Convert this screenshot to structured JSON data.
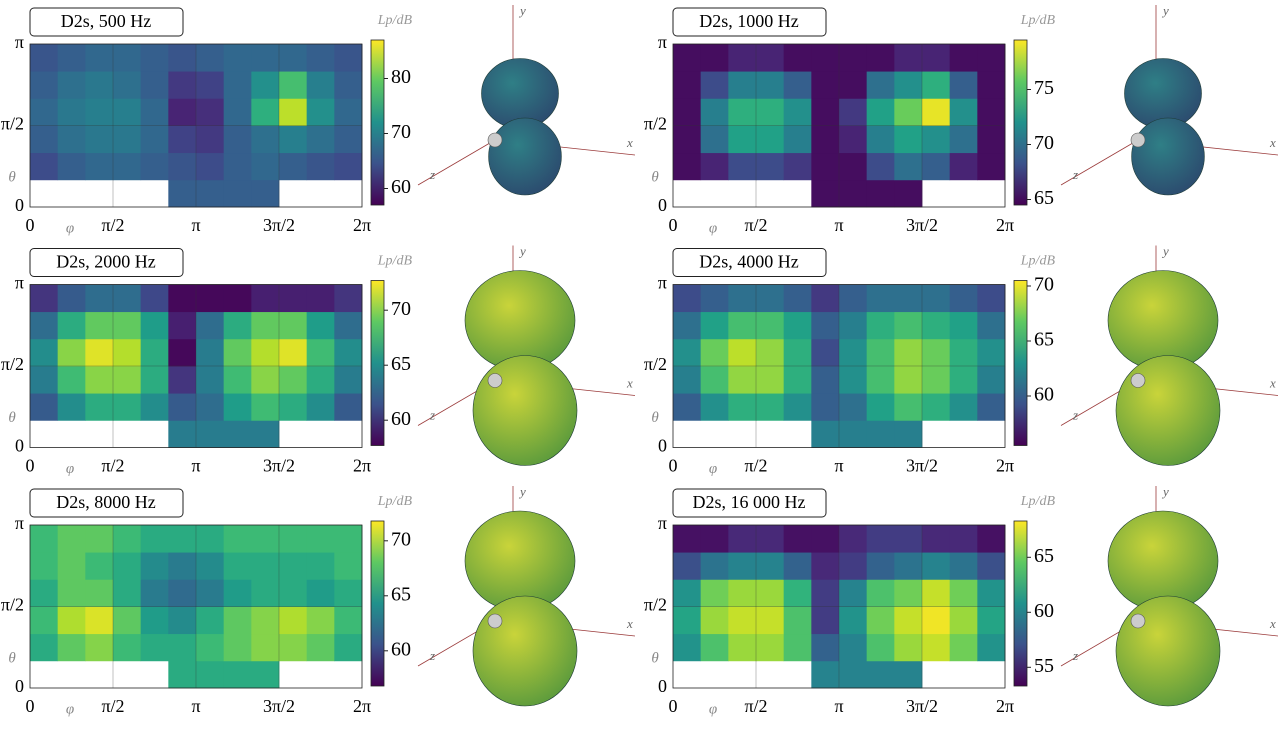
{
  "chart_data": [
    {
      "type": "heatmap",
      "title": "D2s, 500 Hz",
      "colorbar_label": "Lp/dB",
      "x_label": "φ",
      "y_label": "θ",
      "colormap": "viridis",
      "grid": true,
      "xlim": [
        0,
        6.28319
      ],
      "ylim": [
        0,
        3.14159
      ],
      "xticks": [
        0,
        {
          "value": 1.5708,
          "label": "π/2"
        },
        {
          "value": 3.14159,
          "label": "π"
        },
        {
          "value": 4.71239,
          "label": "3π/2"
        },
        {
          "value": 6.28319,
          "label": "2π"
        }
      ],
      "yticks": [
        0,
        {
          "value": 1.5708,
          "label": "π/2"
        },
        {
          "value": 3.14159,
          "label": "π"
        }
      ],
      "zlim": [
        57,
        87
      ],
      "zticks": [
        60,
        70,
        80
      ],
      "balloon_axis_labels": [
        "x",
        "y",
        "z"
      ],
      "values": [
        [
          null,
          null,
          null,
          null,
          null,
          66,
          66,
          66,
          66,
          null,
          null,
          null
        ],
        [
          64,
          66,
          67,
          67,
          66,
          65,
          64,
          66,
          67,
          66,
          65,
          64
        ],
        [
          66,
          68,
          69,
          69,
          67,
          63,
          62,
          66,
          68,
          70,
          68,
          66
        ],
        [
          67,
          69,
          70,
          70,
          67,
          60,
          61,
          67,
          76,
          84,
          72,
          67
        ],
        [
          66,
          68,
          69,
          68,
          66,
          62,
          63,
          67,
          72,
          78,
          70,
          66
        ],
        [
          65,
          66,
          67,
          67,
          66,
          65,
          66,
          67,
          67,
          67,
          66,
          65
        ]
      ]
    },
    {
      "type": "heatmap",
      "title": "D2s, 1000 Hz",
      "colorbar_label": "Lp/dB",
      "x_label": "φ",
      "y_label": "θ",
      "colormap": "viridis",
      "grid": true,
      "xlim": [
        0,
        6.28319
      ],
      "ylim": [
        0,
        3.14159
      ],
      "xticks": [
        0,
        {
          "value": 1.5708,
          "label": "π/2"
        },
        {
          "value": 3.14159,
          "label": "π"
        },
        {
          "value": 4.71239,
          "label": "3π/2"
        },
        {
          "value": 6.28319,
          "label": "2π"
        }
      ],
      "yticks": [
        0,
        {
          "value": 1.5708,
          "label": "π/2"
        },
        {
          "value": 3.14159,
          "label": "π"
        }
      ],
      "zlim": [
        64.5,
        79.5
      ],
      "zticks": [
        65,
        70,
        75
      ],
      "balloon_axis_labels": [
        "x",
        "y",
        "z"
      ],
      "values": [
        [
          null,
          null,
          null,
          null,
          null,
          65,
          65,
          65,
          65,
          null,
          null,
          null
        ],
        [
          65,
          66,
          68,
          68,
          67,
          65,
          65,
          68,
          70,
          69,
          66,
          65
        ],
        [
          65,
          70,
          73,
          73,
          71,
          65,
          66,
          71,
          73,
          72,
          70,
          65
        ],
        [
          65,
          71,
          74,
          74,
          72,
          65,
          67,
          73,
          76,
          79,
          72,
          65
        ],
        [
          65,
          68,
          71,
          71,
          69,
          65,
          65,
          70,
          72,
          74,
          69,
          65
        ],
        [
          65,
          65,
          66,
          66,
          65,
          65,
          65,
          65,
          66,
          66,
          65,
          65
        ]
      ]
    },
    {
      "type": "heatmap",
      "title": "D2s, 2000 Hz",
      "colorbar_label": "Lp/dB",
      "x_label": "φ",
      "y_label": "θ",
      "colormap": "viridis",
      "grid": true,
      "xlim": [
        0,
        6.28319
      ],
      "ylim": [
        0,
        3.14159
      ],
      "xticks": [
        0,
        {
          "value": 1.5708,
          "label": "π/2"
        },
        {
          "value": 3.14159,
          "label": "π"
        },
        {
          "value": 4.71239,
          "label": "3π/2"
        },
        {
          "value": 6.28319,
          "label": "2π"
        }
      ],
      "yticks": [
        0,
        {
          "value": 1.5708,
          "label": "π/2"
        },
        {
          "value": 3.14159,
          "label": "π"
        }
      ],
      "zlim": [
        57.7,
        72.7
      ],
      "zticks": [
        60,
        65,
        70
      ],
      "balloon_axis_labels": [
        "x",
        "y",
        "z"
      ],
      "values": [
        [
          null,
          null,
          null,
          null,
          null,
          64,
          64,
          64,
          64,
          null,
          null,
          null
        ],
        [
          62,
          65,
          67,
          67,
          65,
          62,
          63,
          66,
          68,
          67,
          65,
          62
        ],
        [
          64,
          68,
          70,
          70,
          67,
          60,
          64,
          68,
          70,
          69,
          67,
          64
        ],
        [
          65,
          70,
          72,
          71,
          67,
          58,
          64,
          69,
          71,
          72,
          68,
          65
        ],
        [
          63,
          67,
          69,
          69,
          66,
          59,
          63,
          67,
          69,
          69,
          66,
          63
        ],
        [
          60,
          62,
          63,
          63,
          61,
          58,
          58,
          58,
          59,
          59,
          59,
          60
        ]
      ]
    },
    {
      "type": "heatmap",
      "title": "D2s, 4000 Hz",
      "colorbar_label": "Lp/dB",
      "x_label": "φ",
      "y_label": "θ",
      "colormap": "viridis",
      "grid": true,
      "xlim": [
        0,
        6.28319
      ],
      "ylim": [
        0,
        3.14159
      ],
      "xticks": [
        0,
        {
          "value": 1.5708,
          "label": "π/2"
        },
        {
          "value": 3.14159,
          "label": "π"
        },
        {
          "value": 4.71239,
          "label": "3π/2"
        },
        {
          "value": 6.28319,
          "label": "2π"
        }
      ],
      "yticks": [
        0,
        {
          "value": 1.5708,
          "label": "π/2"
        },
        {
          "value": 3.14159,
          "label": "π"
        }
      ],
      "zlim": [
        55.5,
        70.5
      ],
      "zticks": [
        60,
        65,
        70
      ],
      "balloon_axis_labels": [
        "x",
        "y",
        "z"
      ],
      "values": [
        [
          null,
          null,
          null,
          null,
          null,
          62,
          62,
          62,
          62,
          null,
          null,
          null
        ],
        [
          60,
          63,
          65,
          65,
          63,
          60,
          61,
          64,
          66,
          65,
          63,
          60
        ],
        [
          62,
          66,
          68,
          68,
          65,
          60,
          63,
          66,
          68,
          67,
          65,
          62
        ],
        [
          63,
          67,
          69,
          68,
          65,
          59,
          63,
          66,
          68,
          67,
          65,
          63
        ],
        [
          61,
          64,
          66,
          66,
          64,
          60,
          62,
          65,
          66,
          65,
          64,
          61
        ],
        [
          59,
          60,
          61,
          61,
          60,
          58,
          60,
          61,
          61,
          61,
          60,
          59
        ]
      ]
    },
    {
      "type": "heatmap",
      "title": "D2s, 8000 Hz",
      "colorbar_label": "Lp/dB",
      "x_label": "φ",
      "y_label": "θ",
      "colormap": "viridis",
      "grid": true,
      "xlim": [
        0,
        6.28319
      ],
      "ylim": [
        0,
        3.14159
      ],
      "xticks": [
        0,
        {
          "value": 1.5708,
          "label": "π/2"
        },
        {
          "value": 3.14159,
          "label": "π"
        },
        {
          "value": 4.71239,
          "label": "3π/2"
        },
        {
          "value": 6.28319,
          "label": "2π"
        }
      ],
      "yticks": [
        0,
        {
          "value": 1.5708,
          "label": "π/2"
        },
        {
          "value": 3.14159,
          "label": "π"
        }
      ],
      "zlim": [
        56.8,
        71.8
      ],
      "zticks": [
        60,
        65,
        70
      ],
      "balloon_axis_labels": [
        "x",
        "y",
        "z"
      ],
      "values": [
        [
          null,
          null,
          null,
          null,
          null,
          66,
          66,
          66,
          66,
          null,
          null,
          null
        ],
        [
          66,
          68,
          69,
          67,
          66,
          66,
          67,
          68,
          69,
          69,
          68,
          66
        ],
        [
          67,
          70,
          71,
          68,
          65,
          64,
          66,
          68,
          69,
          70,
          69,
          67
        ],
        [
          66,
          68,
          68,
          66,
          63,
          62,
          63,
          65,
          66,
          66,
          65,
          66
        ],
        [
          67,
          68,
          67,
          66,
          64,
          63,
          64,
          66,
          66,
          66,
          66,
          67
        ],
        [
          67,
          68,
          68,
          67,
          66,
          66,
          66,
          67,
          67,
          67,
          67,
          67
        ]
      ]
    },
    {
      "type": "heatmap",
      "title": "D2s, 16 000 Hz",
      "colorbar_label": "Lp/dB",
      "x_label": "φ",
      "y_label": "θ",
      "colormap": "viridis",
      "grid": true,
      "xlim": [
        0,
        6.28319
      ],
      "ylim": [
        0,
        3.14159
      ],
      "xticks": [
        0,
        {
          "value": 1.5708,
          "label": "π/2"
        },
        {
          "value": 3.14159,
          "label": "π"
        },
        {
          "value": 4.71239,
          "label": "3π/2"
        },
        {
          "value": 6.28319,
          "label": "2π"
        }
      ],
      "yticks": [
        0,
        {
          "value": 1.5708,
          "label": "π/2"
        },
        {
          "value": 3.14159,
          "label": "π"
        }
      ],
      "zlim": [
        53.3,
        68.3
      ],
      "zticks": [
        55,
        60,
        65
      ],
      "balloon_axis_labels": [
        "x",
        "y",
        "z"
      ],
      "values": [
        [
          null,
          null,
          null,
          null,
          null,
          60,
          60,
          60,
          60,
          null,
          null,
          null
        ],
        [
          61,
          64,
          66,
          66,
          64,
          58,
          60,
          64,
          66,
          67,
          65,
          61
        ],
        [
          62,
          66,
          67,
          67,
          64,
          56,
          61,
          65,
          67,
          68,
          66,
          62
        ],
        [
          61,
          65,
          66,
          66,
          63,
          56,
          60,
          64,
          65,
          67,
          65,
          61
        ],
        [
          57,
          59,
          60,
          60,
          58,
          55,
          56,
          58,
          59,
          60,
          59,
          57
        ],
        [
          54,
          54,
          55,
          55,
          54,
          54,
          55,
          56,
          56,
          55,
          55,
          54
        ]
      ]
    }
  ]
}
